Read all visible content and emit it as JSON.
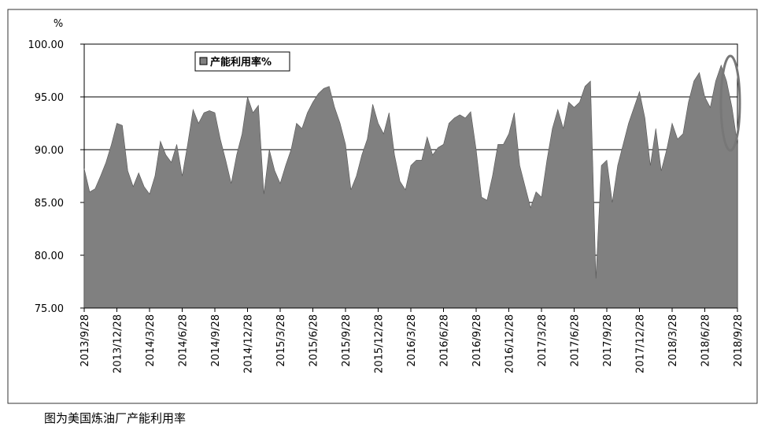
{
  "chart_data": {
    "type": "area",
    "y_unit": "%",
    "caption": "图为美国炼油厂产能利用率",
    "categories": [
      "2013/9/28",
      null,
      null,
      null,
      null,
      null,
      "2013/12/28",
      null,
      null,
      null,
      null,
      null,
      "2014/3/28",
      null,
      null,
      null,
      null,
      null,
      "2014/6/28",
      null,
      null,
      null,
      null,
      null,
      "2014/9/28",
      null,
      null,
      null,
      null,
      null,
      "2014/12/28",
      null,
      null,
      null,
      null,
      null,
      "2015/3/28",
      null,
      null,
      null,
      null,
      null,
      "2015/6/28",
      null,
      null,
      null,
      null,
      null,
      "2015/9/28",
      null,
      null,
      null,
      null,
      null,
      "2015/12/28",
      null,
      null,
      null,
      null,
      null,
      "2016/3/28",
      null,
      null,
      null,
      null,
      null,
      "2016/6/28",
      null,
      null,
      null,
      null,
      null,
      "2016/9/28",
      null,
      null,
      null,
      null,
      null,
      "2016/12/28",
      null,
      null,
      null,
      null,
      null,
      "2017/3/28",
      null,
      null,
      null,
      null,
      null,
      "2017/6/28",
      null,
      null,
      null,
      null,
      null,
      "2017/9/28",
      null,
      null,
      null,
      null,
      null,
      "2017/12/28",
      null,
      null,
      null,
      null,
      null,
      "2018/3/28",
      null,
      null,
      null,
      null,
      null,
      "2018/6/28",
      null,
      null,
      null,
      null,
      null,
      "2018/9/28"
    ],
    "series": [
      {
        "name": "产能利用率%",
        "color": "#808080",
        "values": [
          88.2,
          86,
          86.3,
          87.5,
          88.8,
          90.5,
          92.5,
          92.3,
          88,
          86.5,
          87.8,
          86.5,
          85.8,
          87.5,
          90.8,
          89.5,
          88.8,
          90.5,
          87.5,
          90.5,
          93.8,
          92.5,
          93.5,
          93.7,
          93.5,
          91,
          89,
          86.8,
          89.5,
          91.5,
          95,
          93.5,
          94.2,
          85.8,
          90,
          88,
          86.8,
          88.5,
          90,
          92.5,
          92,
          93.5,
          94.5,
          95.3,
          95.8,
          96,
          94,
          92.5,
          90.5,
          86.2,
          87.5,
          89.5,
          91,
          94.3,
          92.5,
          91.5,
          93.5,
          89.5,
          87,
          86.2,
          88.5,
          89,
          89,
          91.2,
          89.5,
          90.2,
          90.5,
          92.5,
          93,
          93.3,
          93,
          93.6,
          90,
          85.5,
          85.2,
          87.5,
          90.5,
          90.5,
          91.5,
          93.5,
          88.5,
          86.5,
          84.5,
          86,
          85.5,
          89,
          92,
          93.8,
          92,
          94.5,
          94,
          94.5,
          96,
          96.5,
          77.8,
          88.5,
          89,
          85,
          88.5,
          90.5,
          92.5,
          94,
          95.5,
          93,
          88.5,
          92,
          88,
          90,
          92.5,
          91,
          91.5,
          94.5,
          96.5,
          97.3,
          95,
          94,
          96.5,
          98,
          96.5,
          94,
          90.5
        ]
      }
    ],
    "ylim": [
      75,
      100
    ],
    "yticks": [
      {
        "value": 75,
        "label": "75.00"
      },
      {
        "value": 80,
        "label": "80.00"
      },
      {
        "value": 85,
        "label": "85.00"
      },
      {
        "value": 90,
        "label": "90.00"
      },
      {
        "value": 95,
        "label": "95.00"
      },
      {
        "value": 100,
        "label": "100.00"
      }
    ],
    "grid": true,
    "legend": "top-left"
  }
}
